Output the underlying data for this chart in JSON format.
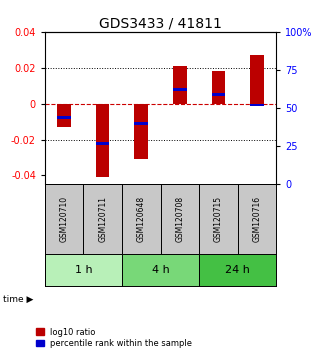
{
  "title": "GDS3433 / 41811",
  "samples": [
    "GSM120710",
    "GSM120711",
    "GSM120648",
    "GSM120708",
    "GSM120715",
    "GSM120716"
  ],
  "log10_ratio": [
    -0.013,
    -0.041,
    -0.031,
    0.021,
    0.018,
    0.027
  ],
  "percentile": [
    44,
    27,
    40,
    62,
    59,
    52
  ],
  "time_groups": [
    {
      "label": "1 h",
      "indices": [
        0,
        1
      ],
      "color": "#b8f0b8"
    },
    {
      "label": "4 h",
      "indices": [
        2,
        3
      ],
      "color": "#78d878"
    },
    {
      "label": "24 h",
      "indices": [
        4,
        5
      ],
      "color": "#44c044"
    }
  ],
  "ylim": [
    -0.045,
    0.04
  ],
  "yticks_left": [
    -0.04,
    -0.02,
    0,
    0.02,
    0.04
  ],
  "yticks_right": [
    0,
    25,
    50,
    75,
    100
  ],
  "bar_color": "#bb0000",
  "dot_color": "#0000cc",
  "zero_line_color": "#cc0000",
  "grid_color": "#000000",
  "background_label": "#c8c8c8",
  "title_fontsize": 10,
  "tick_fontsize": 7,
  "sample_fontsize": 5.5,
  "time_fontsize": 8,
  "legend_fontsize": 6
}
